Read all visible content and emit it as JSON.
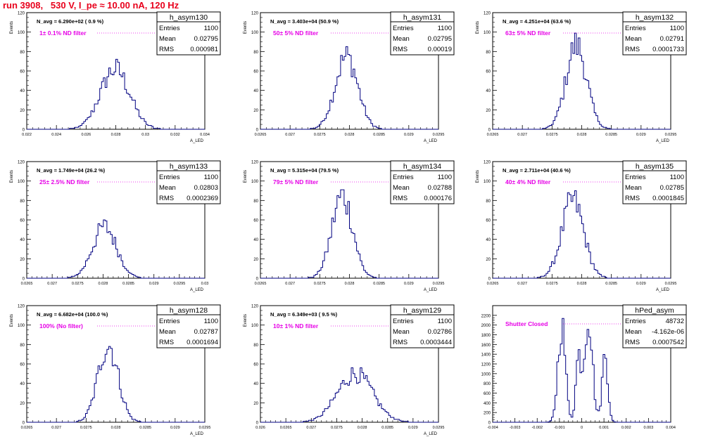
{
  "title": "run 3908,   530 V, I_pe ≈ 10.00 nA, 120 Hz",
  "colors": {
    "title": "#e8001c",
    "annotation": "#e600e6",
    "histogram": "#000080",
    "frame": "#000000"
  },
  "stats_labels": {
    "entries": "Entries",
    "mean": "Mean",
    "rms": "RMS"
  },
  "chart_data": [
    {
      "type": "histogram",
      "name": "h_asym130",
      "ylabel": "Events",
      "xlabel": "A_LED",
      "navg": "N_avg = 6.290e+02 ( 0.9 %)",
      "annotation": "1± 0.1% ND filter",
      "stats": {
        "entries": "1100",
        "mean": "0.02795",
        "rms": "0.000981"
      },
      "xlim": [
        0.022,
        0.034
      ],
      "ylim": [
        0,
        120
      ],
      "xticks": [
        0.022,
        0.024,
        0.026,
        0.028,
        0.03,
        0.032,
        0.034
      ],
      "xticklabels": [
        "0.022",
        "0.024",
        "0.026",
        "0.028",
        "0.03",
        "0.032",
        "0.034"
      ],
      "yticks": [
        0,
        20,
        40,
        60,
        80,
        100,
        120
      ],
      "yticklabels": [
        "0",
        "20",
        "40",
        "60",
        "80",
        "100",
        "120"
      ],
      "mean": 0.02795,
      "sigma": 0.000981,
      "peak": 62
    },
    {
      "type": "histogram",
      "name": "h_asym131",
      "ylabel": "Events",
      "xlabel": "A_LED",
      "navg": "N_avg = 3.403e+04 (50.9 %)",
      "annotation": "50± 5% ND filter",
      "stats": {
        "entries": "1100",
        "mean": "0.02795",
        "rms": "0.00019"
      },
      "xlim": [
        0.0265,
        0.0295
      ],
      "ylim": [
        0,
        120
      ],
      "xticks": [
        0.0265,
        0.027,
        0.0275,
        0.028,
        0.0285,
        0.029,
        0.0295
      ],
      "xticklabels": [
        "0.0265",
        "0.027",
        "0.0275",
        "0.028",
        "0.0285",
        "0.029",
        "0.0295"
      ],
      "yticks": [
        0,
        20,
        40,
        60,
        80,
        100,
        120
      ],
      "yticklabels": [
        "0",
        "20",
        "40",
        "60",
        "80",
        "100",
        "120"
      ],
      "mean": 0.02795,
      "sigma": 0.00019,
      "peak": 75
    },
    {
      "type": "histogram",
      "name": "h_asym132",
      "ylabel": "Events",
      "xlabel": "A_LED",
      "navg": "N_avg = 4.251e+04 (63.6 %)",
      "annotation": "63± 5% ND filter",
      "stats": {
        "entries": "1100",
        "mean": "0.02791",
        "rms": "0.0001733"
      },
      "xlim": [
        0.0265,
        0.0295
      ],
      "ylim": [
        0,
        120
      ],
      "xticks": [
        0.0265,
        0.027,
        0.0275,
        0.028,
        0.0285,
        0.029,
        0.0295
      ],
      "xticklabels": [
        "0.0265",
        "0.027",
        "0.0275",
        "0.028",
        "0.0285",
        "0.029",
        "0.0295"
      ],
      "yticks": [
        0,
        20,
        40,
        60,
        80,
        100,
        120
      ],
      "yticklabels": [
        "0",
        "20",
        "40",
        "60",
        "80",
        "100",
        "120"
      ],
      "mean": 0.02791,
      "sigma": 0.0001733,
      "peak": 87
    },
    {
      "type": "histogram",
      "name": "h_asym133",
      "ylabel": "Events",
      "xlabel": "A_LED",
      "navg": "N_avg = 1.749e+04 (26.2 %)",
      "annotation": "25± 2.5% ND filter",
      "stats": {
        "entries": "1100",
        "mean": "0.02803",
        "rms": "0.0002369"
      },
      "xlim": [
        0.0265,
        0.03
      ],
      "ylim": [
        0,
        120
      ],
      "xticks": [
        0.0265,
        0.027,
        0.0275,
        0.028,
        0.0285,
        0.029,
        0.0295,
        0.03
      ],
      "xticklabels": [
        "0.0265",
        "0.027",
        "0.0275",
        "0.028",
        "0.0285",
        "0.029",
        "0.0295",
        "0.03"
      ],
      "yticks": [
        0,
        20,
        40,
        60,
        80,
        100,
        120
      ],
      "yticklabels": [
        "0",
        "20",
        "40",
        "60",
        "80",
        "100",
        "120"
      ],
      "mean": 0.02803,
      "sigma": 0.0002369,
      "peak": 53
    },
    {
      "type": "histogram",
      "name": "h_asym134",
      "ylabel": "Events",
      "xlabel": "A_LED",
      "navg": "N_avg = 5.315e+04 (79.5 %)",
      "annotation": "79± 5% ND filter",
      "stats": {
        "entries": "1100",
        "mean": "0.02788",
        "rms": "0.000176"
      },
      "xlim": [
        0.0265,
        0.0295
      ],
      "ylim": [
        0,
        120
      ],
      "xticks": [
        0.0265,
        0.027,
        0.0275,
        0.028,
        0.0285,
        0.029,
        0.0295
      ],
      "xticklabels": [
        "0.0265",
        "0.027",
        "0.0275",
        "0.028",
        "0.0285",
        "0.029",
        "0.0295"
      ],
      "yticks": [
        0,
        20,
        40,
        60,
        80,
        100,
        120
      ],
      "yticklabels": [
        "0",
        "20",
        "40",
        "60",
        "80",
        "100",
        "120"
      ],
      "mean": 0.02788,
      "sigma": 0.000176,
      "peak": 85
    },
    {
      "type": "histogram",
      "name": "h_asym135",
      "ylabel": "Events",
      "xlabel": "A_LED",
      "navg": "N_avg = 2.711e+04 (40.6 %)",
      "annotation": "40± 4% ND filter",
      "stats": {
        "entries": "1100",
        "mean": "0.02785",
        "rms": "0.0001845"
      },
      "xlim": [
        0.0265,
        0.0295
      ],
      "ylim": [
        0,
        120
      ],
      "xticks": [
        0.0265,
        0.027,
        0.0275,
        0.028,
        0.0285,
        0.029,
        0.0295
      ],
      "xticklabels": [
        "0.0265",
        "0.027",
        "0.0275",
        "0.028",
        "0.0285",
        "0.029",
        "0.0295"
      ],
      "yticks": [
        0,
        20,
        40,
        60,
        80,
        100,
        120
      ],
      "yticklabels": [
        "0",
        "20",
        "40",
        "60",
        "80",
        "100",
        "120"
      ],
      "mean": 0.02785,
      "sigma": 0.0001845,
      "peak": 80
    },
    {
      "type": "histogram",
      "name": "h_asym128",
      "ylabel": "Events",
      "xlabel": "A_LED",
      "navg": "N_avg = 6.682e+04 (100.0 %)",
      "annotation": "100% (No filter)",
      "stats": {
        "entries": "1100",
        "mean": "0.02787",
        "rms": "0.0001694"
      },
      "xlim": [
        0.0265,
        0.0295
      ],
      "ylim": [
        0,
        120
      ],
      "xticks": [
        0.0265,
        0.027,
        0.0275,
        0.028,
        0.0285,
        0.029,
        0.0295
      ],
      "xticklabels": [
        "0.0265",
        "0.027",
        "0.0275",
        "0.028",
        "0.0285",
        "0.029",
        "0.0295"
      ],
      "yticks": [
        0,
        20,
        40,
        60,
        80,
        100,
        120
      ],
      "yticklabels": [
        "0",
        "20",
        "40",
        "60",
        "80",
        "100",
        "120"
      ],
      "mean": 0.02787,
      "sigma": 0.0001694,
      "peak": 80
    },
    {
      "type": "histogram",
      "name": "h_asym129",
      "ylabel": "Events",
      "xlabel": "A_LED",
      "navg": "N_avg = 6.349e+03 ( 9.5 %)",
      "annotation": "10± 1% ND filter",
      "stats": {
        "entries": "1100",
        "mean": "0.02786",
        "rms": "0.0003444"
      },
      "xlim": [
        0.026,
        0.0295
      ],
      "ylim": [
        0,
        120
      ],
      "xticks": [
        0.026,
        0.0265,
        0.027,
        0.0275,
        0.028,
        0.0285,
        0.029,
        0.0295
      ],
      "xticklabels": [
        "0.026",
        "0.0265",
        "0.027",
        "0.0275",
        "0.028",
        "0.0285",
        "0.029",
        "0.0295"
      ],
      "yticks": [
        0,
        20,
        40,
        60,
        80,
        100,
        120
      ],
      "yticklabels": [
        "0",
        "20",
        "40",
        "60",
        "80",
        "100",
        "120"
      ],
      "mean": 0.02786,
      "sigma": 0.0003444,
      "peak": 50
    },
    {
      "type": "histogram",
      "name": "hPed_asym",
      "ylabel": "",
      "xlabel": "",
      "navg": "",
      "annotation": "Shutter Closed",
      "stats": {
        "entries": "48732",
        "mean": "-4.162e-06",
        "rms": "0.0007542"
      },
      "xlim": [
        -0.004,
        0.004
      ],
      "ylim": [
        0,
        2400
      ],
      "xticks": [
        -0.004,
        -0.003,
        -0.002,
        -0.001,
        0,
        0.001,
        0.002,
        0.003,
        0.004
      ],
      "xticklabels": [
        "-0.004",
        "-0.003",
        "-0.002",
        "-0.001",
        "0",
        "0.001",
        "0.002",
        "0.003",
        "0.004"
      ],
      "yticks": [
        0,
        200,
        400,
        600,
        800,
        1000,
        1200,
        1400,
        1600,
        1800,
        2000,
        2200
      ],
      "yticklabels": [
        "0",
        "200",
        "400",
        "600",
        "800",
        "1000",
        "1200",
        "1400",
        "1600",
        "1800",
        "2000",
        "2200"
      ],
      "peaks": [
        {
          "center": -0.0009,
          "sigma": 0.00017,
          "height": 2000
        },
        {
          "center": 0.0003,
          "sigma": 0.00018,
          "height": 2200
        },
        {
          "center": -0.00015,
          "sigma": 0.00012,
          "height": 1300
        },
        {
          "center": 0.00105,
          "sigma": 0.00013,
          "height": 1400
        }
      ]
    }
  ]
}
